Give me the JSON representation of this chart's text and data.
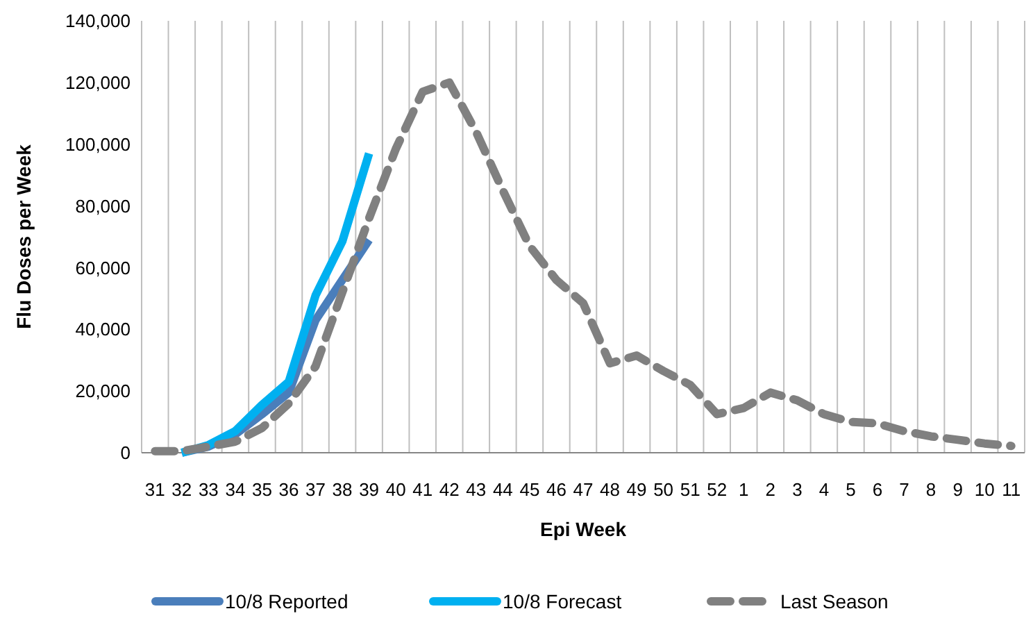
{
  "chart_data": {
    "type": "line",
    "xlabel": "Epi Week",
    "ylabel": "Flu Doses per Week",
    "categories": [
      "31",
      "32",
      "33",
      "34",
      "35",
      "36",
      "37",
      "38",
      "39",
      "40",
      "41",
      "42",
      "43",
      "44",
      "45",
      "46",
      "47",
      "48",
      "49",
      "50",
      "51",
      "52",
      "1",
      "2",
      "3",
      "4",
      "5",
      "6",
      "7",
      "8",
      "9",
      "10",
      "11"
    ],
    "ylim": [
      0,
      140000
    ],
    "yticks": [
      {
        "value": 0,
        "label": "0"
      },
      {
        "value": 20000,
        "label": "20,000"
      },
      {
        "value": 40000,
        "label": "40,000"
      },
      {
        "value": 60000,
        "label": "60,000"
      },
      {
        "value": 80000,
        "label": "80,000"
      },
      {
        "value": 100000,
        "label": "100,000"
      },
      {
        "value": 120000,
        "label": "120,000"
      },
      {
        "value": 140000,
        "label": "140,000"
      }
    ],
    "grid": "x",
    "legend": "bottom",
    "marker": "none",
    "series": [
      {
        "name": "10/8 Reported",
        "color": "#4a7ebb",
        "line_style": "solid",
        "values": [
          null,
          0,
          2000,
          6000,
          12500,
          19500,
          43000,
          56000,
          69000,
          null,
          null,
          null,
          null,
          null,
          null,
          null,
          null,
          null,
          null,
          null,
          null,
          null,
          null,
          null,
          null,
          null,
          null,
          null,
          null,
          null,
          null,
          null,
          null
        ]
      },
      {
        "name": "10/8 Forecast",
        "color": "#00b0f0",
        "line_style": "solid",
        "values": [
          null,
          0,
          2500,
          7000,
          15500,
          23000,
          51000,
          68500,
          97000,
          null,
          null,
          null,
          null,
          null,
          null,
          null,
          null,
          null,
          null,
          null,
          null,
          null,
          null,
          null,
          null,
          null,
          null,
          null,
          null,
          null,
          null,
          null,
          null
        ]
      },
      {
        "name": "Last Season",
        "color": "#808080",
        "line_style": "dashed",
        "values": [
          500,
          500,
          2000,
          3600,
          8000,
          16000,
          28000,
          52000,
          76000,
          98500,
          117000,
          120000,
          104000,
          85000,
          67000,
          56000,
          48500,
          29000,
          31500,
          26500,
          22000,
          12500,
          14500,
          19500,
          17000,
          12500,
          10000,
          9500,
          7000,
          5300,
          4200,
          3000,
          2200
        ]
      }
    ]
  }
}
